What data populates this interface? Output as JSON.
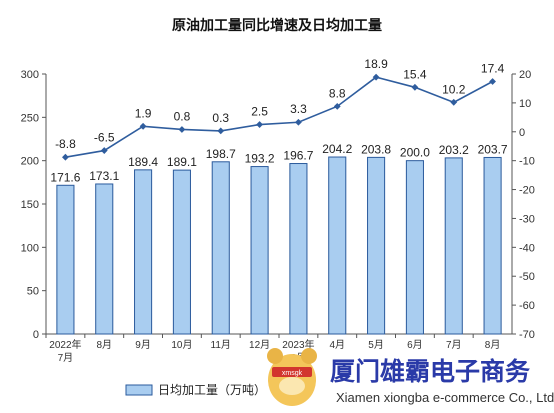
{
  "chart_data": {
    "type": "bar+line",
    "title": "原油加工量同比增速及日均加工量",
    "categories": [
      [
        "2022年",
        "7月"
      ],
      [
        "8月"
      ],
      [
        "9月"
      ],
      [
        "10月"
      ],
      [
        "11月"
      ],
      [
        "12月"
      ],
      [
        "2023年",
        "3月"
      ],
      [
        "4月"
      ],
      [
        "5月"
      ],
      [
        "6月"
      ],
      [
        "7月"
      ],
      [
        "8月"
      ]
    ],
    "left_axis": {
      "min": 0,
      "max": 300,
      "ticks": [
        "0",
        "50",
        "100",
        "150",
        "200",
        "250",
        "300"
      ]
    },
    "right_axis": {
      "min": -70,
      "max": 20,
      "ticks": [
        "-70",
        "-60",
        "-50",
        "-40",
        "-30",
        "-20",
        "-10",
        "0",
        "10",
        "20"
      ]
    },
    "series": [
      {
        "name": "日均加工量（万吨）",
        "axis": "left",
        "values": [
          171.6,
          173.1,
          189.4,
          189.1,
          198.7,
          193.2,
          196.7,
          204.2,
          203.8,
          200.0,
          203.2,
          203.7
        ],
        "labels": [
          "171.6",
          "173.1",
          "189.4",
          "189.1",
          "198.7",
          "193.2",
          "196.7",
          "204.2",
          "203.8",
          "200.0",
          "203.2",
          "203.7"
        ]
      },
      {
        "axis": "right",
        "values": [
          -8.8,
          -6.5,
          1.9,
          0.8,
          0.3,
          2.5,
          3.3,
          8.8,
          18.9,
          15.4,
          10.2,
          17.4
        ],
        "labels": [
          "-8.8",
          "-6.5",
          "1.9",
          "0.8",
          "0.3",
          "2.5",
          "3.3",
          "8.8",
          "18.9",
          "15.4",
          "10.2",
          "17.4"
        ]
      }
    ],
    "legend": {
      "placement": "bottom-left"
    },
    "grid": false,
    "colors": {
      "bar_fill": "#a9cdf0",
      "bar_stroke": "#2a5a9c",
      "line": "#2f5d9e"
    }
  },
  "watermark": {
    "name_cn": "厦门雄霸电子商务",
    "name_en": "Xiamen xiongba e-commerce Co., Ltd",
    "logo_text": "xmsgk"
  }
}
